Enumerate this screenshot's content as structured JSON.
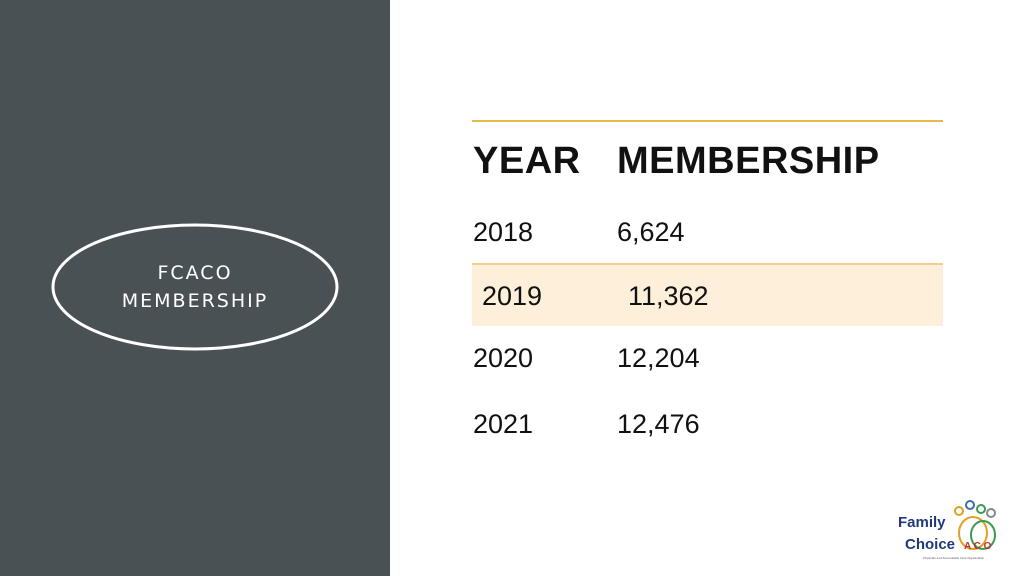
{
  "sidebar": {
    "title_lines": [
      "FCACO",
      "MEMBERSHIP"
    ]
  },
  "table": {
    "header": [
      "YEAR",
      "MEMBERSHIP"
    ],
    "rows": [
      [
        "2018",
        "6,624"
      ],
      [
        "2019",
        "11,362"
      ],
      [
        "2020",
        "12,204"
      ],
      [
        "2021",
        "12,476"
      ]
    ]
  },
  "logo": {
    "line1": "Family",
    "line2": "Choice",
    "aco": "A C O",
    "tagline": "Physician-Led Accountable Care Organization"
  }
}
